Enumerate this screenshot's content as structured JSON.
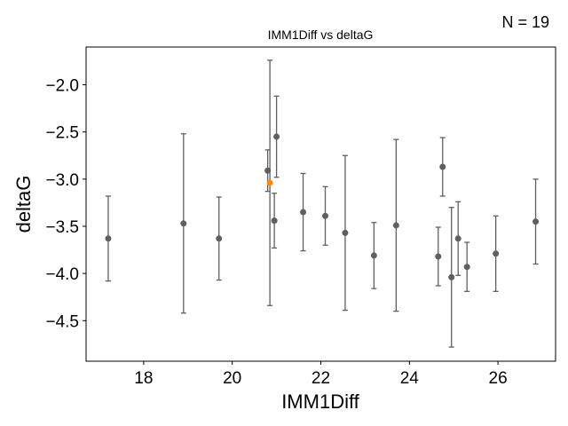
{
  "chart_data": {
    "type": "scatter",
    "title": "IMM1Diff vs deltaG",
    "annotation": "N = 19",
    "xlabel": "IMM1Diff",
    "ylabel": "deltaG",
    "xlim": [
      16.7,
      27.3
    ],
    "ylim": [
      -4.93,
      -1.6
    ],
    "xticks": [
      18,
      20,
      22,
      24,
      26
    ],
    "yticks": [
      -2.0,
      -2.5,
      -3.0,
      -3.5,
      -4.0,
      -4.5
    ],
    "grid": false,
    "colors": {
      "points": "#5f5f5f",
      "highlight": "#ff8c00",
      "errorbars": "#5f5f5f"
    },
    "points": [
      {
        "x": 17.2,
        "y": -3.63,
        "err": 0.45
      },
      {
        "x": 18.9,
        "y": -3.47,
        "err": 0.95
      },
      {
        "x": 19.7,
        "y": -3.63,
        "err": 0.44
      },
      {
        "x": 20.8,
        "y": -2.91,
        "err": 0.22
      },
      {
        "x": 20.85,
        "y": -3.04,
        "err": 1.3,
        "highlight": true
      },
      {
        "x": 20.95,
        "y": -3.44,
        "err": 0.29
      },
      {
        "x": 21.0,
        "y": -2.55,
        "err": 0.43
      },
      {
        "x": 21.6,
        "y": -3.35,
        "err": 0.41
      },
      {
        "x": 22.1,
        "y": -3.39,
        "err": 0.31
      },
      {
        "x": 22.55,
        "y": -3.57,
        "err": 0.82
      },
      {
        "x": 23.2,
        "y": -3.81,
        "err": 0.35
      },
      {
        "x": 23.7,
        "y": -3.49,
        "err": 0.91
      },
      {
        "x": 24.65,
        "y": -3.82,
        "err": 0.31
      },
      {
        "x": 24.75,
        "y": -2.87,
        "err": 0.31
      },
      {
        "x": 24.95,
        "y": -4.04,
        "err": 0.74
      },
      {
        "x": 25.1,
        "y": -3.63,
        "err": 0.39
      },
      {
        "x": 25.3,
        "y": -3.93,
        "err": 0.26
      },
      {
        "x": 25.95,
        "y": -3.79,
        "err": 0.4
      },
      {
        "x": 26.85,
        "y": -3.45,
        "err": 0.45
      }
    ]
  }
}
